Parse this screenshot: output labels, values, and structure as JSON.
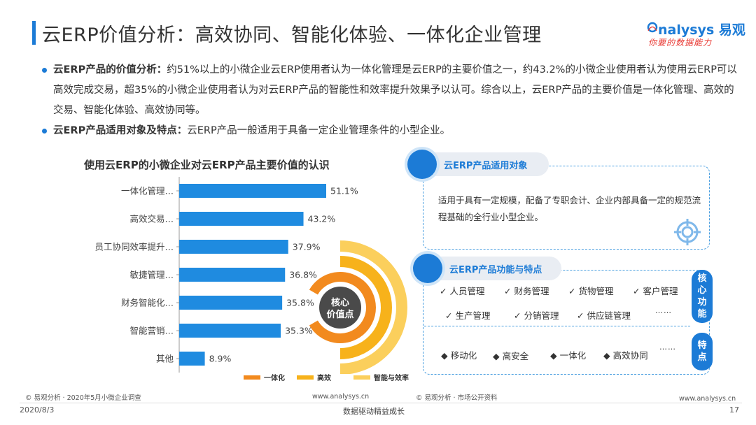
{
  "header": {
    "title": "云ERP价值分析：高效协同、智能化体验、一体化企业管理",
    "logo_main": "nalysys",
    "logo_cn": "易观",
    "logo_sub": "你要的数据能力"
  },
  "bullets": [
    {
      "label": "云ERP产品的价值分析：",
      "text": "约51%以上的小微企业云ERP使用者认为一体化管理是云ERP的主要价值之一，约43.2%的小微企业使用者认为使用云ERP可以高效完成交易，超35%的小微企业使用者认为对云ERP产品的智能性和效率提升效果予以认可。综合以上，云ERP产品的主要价值是一体化管理、高效的交易、智能化体验、高效协同等。"
    },
    {
      "label": "云ERP产品适用对象及特点：",
      "text": "云ERP产品一般适用于具备一定企业管理条件的小型企业。"
    }
  ],
  "chart_data": {
    "type": "bar",
    "orientation": "horizontal",
    "title": "使用云ERP的小微企业对云ERP产品主要价值的认识",
    "categories": [
      "一体化管理…",
      "高效交易…",
      "员工协同效率提升…",
      "敏捷管理…",
      "财务智能化…",
      "智能营销…",
      "其他"
    ],
    "values": [
      51.1,
      43.2,
      37.9,
      36.8,
      35.8,
      35.3,
      8.9
    ],
    "value_labels": [
      "51.1%",
      "43.2%",
      "37.9%",
      "36.8%",
      "35.8%",
      "35.3%",
      "8.9%"
    ],
    "xlim": [
      0,
      60
    ],
    "bar_color": "#1f8be0",
    "grid": false
  },
  "donut": {
    "center_line1": "核心",
    "center_line2": "价值点",
    "rings": [
      {
        "name": "一体化",
        "color": "#f28a1e"
      },
      {
        "name": "高效",
        "color": "#f7b21b"
      },
      {
        "name": "智能与效率",
        "color": "#fbcf5c"
      }
    ]
  },
  "sources": {
    "left": "© 易观分析 · 2020年5月小微企业调查",
    "left_web": "www.analysys.cn",
    "right": "© 易观分析 · 市场公开资料",
    "right_web": "www.analysys.cn"
  },
  "footer": {
    "date": "2020/8/3",
    "slogan": "数据驱动精益成长",
    "page": "17"
  },
  "panel_target": {
    "title": "云ERP产品适用对象",
    "text": "适用于具有一定规模，配备了专职会计、企业内部具备一定的规范流程基础的全行业小型企业。"
  },
  "panel_features": {
    "title": "云ERP产品功能与特点",
    "core_badge": "核心功能",
    "core_row1": [
      "✓ 人员管理",
      "✓ 财务管理",
      "✓ 货物管理",
      "✓ 客户管理"
    ],
    "core_row2": [
      "✓ 生产管理",
      "✓ 分销管理",
      "✓ 供应链管理"
    ],
    "core_more": "……",
    "feature_badge": "特点",
    "feature_row": [
      "◆ 移动化",
      "◆ 高安全",
      "◆ 一体化",
      "◆ 高效协同"
    ],
    "feature_more": "……"
  },
  "colors": {
    "accent": "#1c7bd6",
    "bar": "#1f8be0",
    "ring_orange": "#f28a1e",
    "ring_yellow": "#f7b21b",
    "ring_light": "#fbcf5c"
  }
}
